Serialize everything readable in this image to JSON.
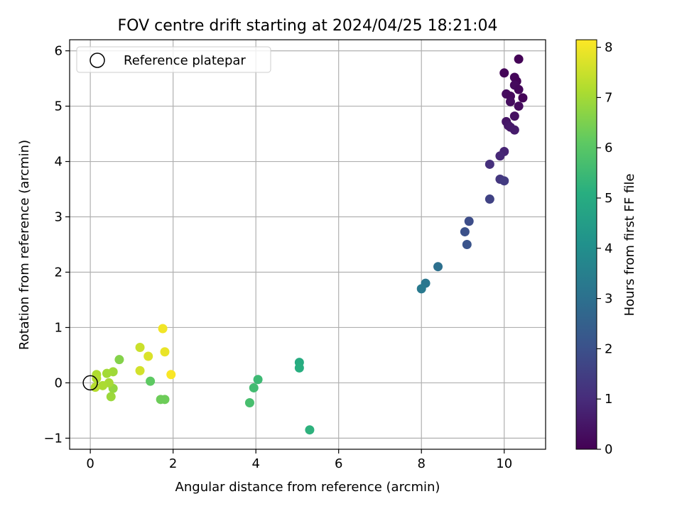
{
  "chart_data": {
    "type": "scatter",
    "title": "FOV centre drift starting at 2024/04/25 18:21:04",
    "xlabel": "Angular distance from reference (arcmin)",
    "ylabel": "Rotation from reference (arcmin)",
    "xlim": [
      -0.5,
      11
    ],
    "ylim": [
      -1.2,
      6.2
    ],
    "xticks": [
      0,
      2,
      4,
      6,
      8,
      10
    ],
    "yticks": [
      -1,
      0,
      1,
      2,
      3,
      4,
      5,
      6
    ],
    "grid": true,
    "legend": {
      "placement": "top-left",
      "entries": [
        "Reference platepar"
      ]
    },
    "reference_point": {
      "x": 0,
      "y": 0
    },
    "colorbar": {
      "label": "Hours from first FF file",
      "range": [
        0,
        8.15
      ],
      "ticks": [
        0,
        1,
        2,
        3,
        4,
        5,
        6,
        7,
        8
      ],
      "colormap": "viridis"
    },
    "points": [
      {
        "x": 10.35,
        "y": 5.85,
        "c": 0.05
      },
      {
        "x": 10.0,
        "y": 5.6,
        "c": 0.1
      },
      {
        "x": 10.25,
        "y": 5.52,
        "c": 0.15
      },
      {
        "x": 10.3,
        "y": 5.45,
        "c": 0.1
      },
      {
        "x": 10.25,
        "y": 5.38,
        "c": 0.2
      },
      {
        "x": 10.35,
        "y": 5.3,
        "c": 0.15
      },
      {
        "x": 10.05,
        "y": 5.22,
        "c": 0.25
      },
      {
        "x": 10.15,
        "y": 5.18,
        "c": 0.2
      },
      {
        "x": 10.45,
        "y": 5.15,
        "c": 0.1
      },
      {
        "x": 10.15,
        "y": 5.08,
        "c": 0.3
      },
      {
        "x": 10.35,
        "y": 5.0,
        "c": 0.25
      },
      {
        "x": 10.25,
        "y": 4.82,
        "c": 0.35
      },
      {
        "x": 10.05,
        "y": 4.72,
        "c": 0.45
      },
      {
        "x": 10.1,
        "y": 4.65,
        "c": 0.5
      },
      {
        "x": 10.15,
        "y": 4.62,
        "c": 0.55
      },
      {
        "x": 10.25,
        "y": 4.57,
        "c": 0.6
      },
      {
        "x": 10.0,
        "y": 4.18,
        "c": 0.8
      },
      {
        "x": 9.9,
        "y": 4.1,
        "c": 0.9
      },
      {
        "x": 9.65,
        "y": 3.95,
        "c": 1.1
      },
      {
        "x": 9.9,
        "y": 3.68,
        "c": 1.3
      },
      {
        "x": 10.0,
        "y": 3.65,
        "c": 1.4
      },
      {
        "x": 9.65,
        "y": 3.32,
        "c": 1.6
      },
      {
        "x": 9.15,
        "y": 2.92,
        "c": 1.9
      },
      {
        "x": 9.05,
        "y": 2.73,
        "c": 2.0
      },
      {
        "x": 9.1,
        "y": 2.5,
        "c": 2.1
      },
      {
        "x": 8.4,
        "y": 2.1,
        "c": 3.0
      },
      {
        "x": 8.1,
        "y": 1.8,
        "c": 3.2
      },
      {
        "x": 8.0,
        "y": 1.7,
        "c": 3.3
      },
      {
        "x": 5.05,
        "y": 0.37,
        "c": 5.0
      },
      {
        "x": 5.05,
        "y": 0.27,
        "c": 5.1
      },
      {
        "x": 5.3,
        "y": -0.85,
        "c": 5.2
      },
      {
        "x": 4.05,
        "y": 0.06,
        "c": 5.5
      },
      {
        "x": 3.95,
        "y": -0.09,
        "c": 5.6
      },
      {
        "x": 3.85,
        "y": -0.36,
        "c": 5.7
      },
      {
        "x": 1.45,
        "y": 0.03,
        "c": 6.1
      },
      {
        "x": 1.7,
        "y": -0.3,
        "c": 6.3
      },
      {
        "x": 1.8,
        "y": -0.3,
        "c": 6.3
      },
      {
        "x": 0.7,
        "y": 0.42,
        "c": 6.6
      },
      {
        "x": 0.55,
        "y": -0.1,
        "c": 6.8
      },
      {
        "x": 0.5,
        "y": -0.25,
        "c": 6.9
      },
      {
        "x": 0.55,
        "y": 0.2,
        "c": 6.95
      },
      {
        "x": 0.4,
        "y": 0.17,
        "c": 7.0
      },
      {
        "x": 0.45,
        "y": 0.0,
        "c": 7.05
      },
      {
        "x": 0.3,
        "y": -0.05,
        "c": 7.1
      },
      {
        "x": 0.15,
        "y": 0.15,
        "c": 7.15
      },
      {
        "x": 0.15,
        "y": 0.08,
        "c": 7.2
      },
      {
        "x": 0.12,
        "y": -0.08,
        "c": 7.25
      },
      {
        "x": 1.2,
        "y": 0.64,
        "c": 7.5
      },
      {
        "x": 1.2,
        "y": 0.22,
        "c": 7.6
      },
      {
        "x": 1.4,
        "y": 0.48,
        "c": 7.7
      },
      {
        "x": 1.8,
        "y": 0.56,
        "c": 7.9
      },
      {
        "x": 1.75,
        "y": 0.98,
        "c": 8.0
      },
      {
        "x": 1.95,
        "y": 0.15,
        "c": 8.1
      }
    ]
  }
}
